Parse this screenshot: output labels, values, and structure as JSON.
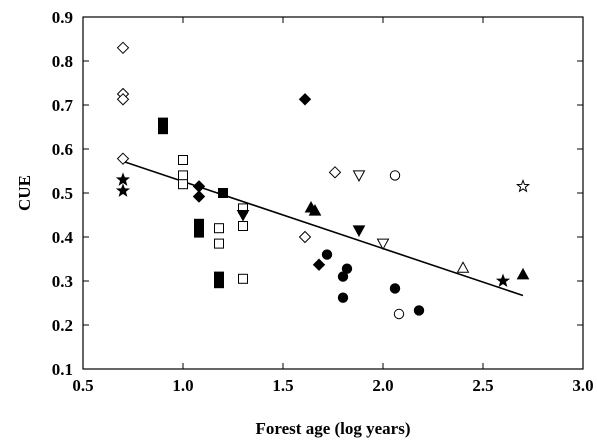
{
  "chart_data": {
    "type": "scatter",
    "xlabel": "Forest age (log years)",
    "ylabel": "CUE",
    "xlim": [
      0.5,
      3.0
    ],
    "ylim": [
      0.1,
      0.9
    ],
    "xticks": [
      "0.5",
      "1.0",
      "1.5",
      "2.0",
      "2.5",
      "3.0"
    ],
    "yticks": [
      "0.1",
      "0.2",
      "0.3",
      "0.4",
      "0.5",
      "0.6",
      "0.7",
      "0.8",
      "0.9"
    ],
    "grid": false,
    "legend": "none",
    "marker_color": "#000000",
    "series": [
      {
        "marker": "diamond-open",
        "points": [
          [
            0.7,
            0.83
          ],
          [
            0.7,
            0.725
          ],
          [
            0.7,
            0.713
          ],
          [
            0.7,
            0.578
          ],
          [
            1.61,
            0.4
          ],
          [
            1.76,
            0.547
          ]
        ]
      },
      {
        "marker": "diamond-filled",
        "points": [
          [
            1.08,
            0.515
          ],
          [
            1.08,
            0.492
          ],
          [
            1.61,
            0.713
          ],
          [
            1.68,
            0.337
          ]
        ]
      },
      {
        "marker": "square-open",
        "points": [
          [
            1.0,
            0.575
          ],
          [
            1.0,
            0.54
          ],
          [
            1.0,
            0.52
          ],
          [
            1.18,
            0.42
          ],
          [
            1.18,
            0.385
          ],
          [
            1.3,
            0.465
          ],
          [
            1.3,
            0.425
          ],
          [
            1.3,
            0.305
          ]
        ]
      },
      {
        "marker": "square-filled",
        "points": [
          [
            0.9,
            0.66
          ],
          [
            0.9,
            0.645
          ],
          [
            1.08,
            0.43
          ],
          [
            1.08,
            0.41
          ],
          [
            1.18,
            0.31
          ],
          [
            1.18,
            0.295
          ],
          [
            1.2,
            0.5
          ]
        ]
      },
      {
        "marker": "circle-open",
        "points": [
          [
            2.06,
            0.54
          ],
          [
            2.08,
            0.225
          ]
        ]
      },
      {
        "marker": "circle-filled",
        "points": [
          [
            1.72,
            0.36
          ],
          [
            1.8,
            0.31
          ],
          [
            1.8,
            0.262
          ],
          [
            1.82,
            0.328
          ],
          [
            2.06,
            0.283
          ],
          [
            2.18,
            0.233
          ]
        ]
      },
      {
        "marker": "triangle-up-open",
        "points": [
          [
            2.4,
            0.33
          ]
        ]
      },
      {
        "marker": "triangle-up-filled",
        "points": [
          [
            1.64,
            0.467
          ],
          [
            1.66,
            0.46
          ],
          [
            2.7,
            0.315
          ]
        ]
      },
      {
        "marker": "triangle-down-open",
        "points": [
          [
            1.88,
            0.54
          ],
          [
            2.0,
            0.385
          ]
        ]
      },
      {
        "marker": "triangle-down-filled",
        "points": [
          [
            1.3,
            0.45
          ],
          [
            1.88,
            0.415
          ]
        ]
      },
      {
        "marker": "star-filled",
        "points": [
          [
            0.7,
            0.53
          ],
          [
            0.7,
            0.505
          ],
          [
            2.6,
            0.3
          ]
        ]
      },
      {
        "marker": "star-open",
        "points": [
          [
            2.7,
            0.515
          ]
        ]
      }
    ],
    "trendline": {
      "x": [
        0.7,
        2.7
      ],
      "y": [
        0.572,
        0.267
      ]
    }
  }
}
